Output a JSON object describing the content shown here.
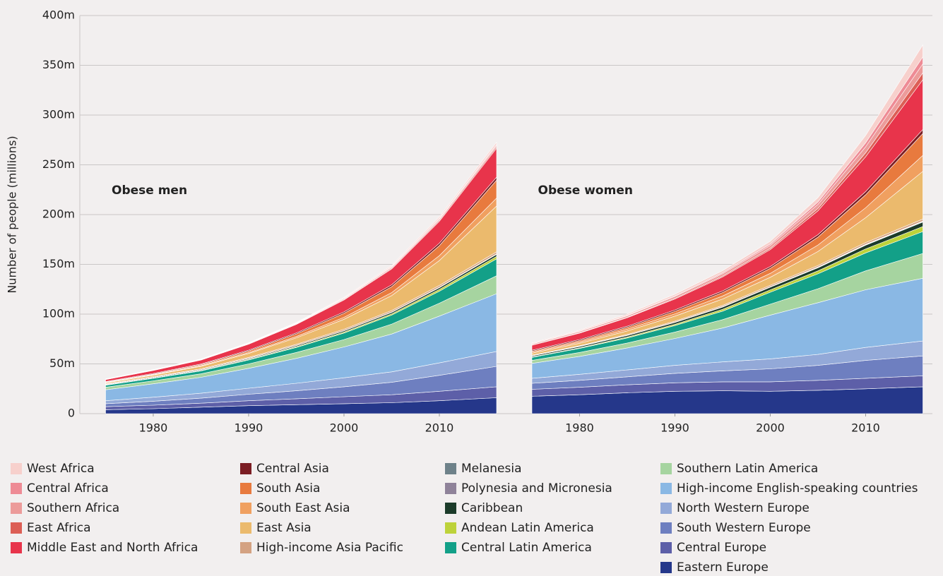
{
  "chart_data": [
    {
      "type": "stacked_area",
      "title": "Obese men",
      "ylabel": "Number of people (millions)",
      "x": [
        1975,
        1980,
        1985,
        1990,
        1995,
        2000,
        2005,
        2010,
        2016
      ],
      "xlim": [
        1972.3,
        2017
      ],
      "xticks": [
        1980,
        1990,
        2000,
        2010
      ],
      "ylim": [
        0,
        400
      ],
      "yticks": [
        0,
        {
          "value": 50,
          "label": "50m"
        },
        {
          "value": 100,
          "label": "100m"
        },
        {
          "value": 150,
          "label": "150m"
        },
        {
          "value": 200,
          "label": "200m"
        },
        {
          "value": 250,
          "label": "250m"
        },
        {
          "value": 300,
          "label": "300m"
        },
        {
          "value": 350,
          "label": "350m"
        },
        {
          "value": 400,
          "label": "400m"
        }
      ],
      "grid": true,
      "series": [
        {
          "name": "West Africa",
          "color": "#f7d0cc",
          "values": [
            0.2,
            0.25,
            0.3,
            0.4,
            0.6,
            0.8,
            1.1,
            1.5,
            2
          ]
        },
        {
          "name": "Central Africa",
          "color": "#ee8b95",
          "values": [
            0.1,
            0.15,
            0.2,
            0.3,
            0.4,
            0.5,
            0.6,
            0.8,
            1
          ]
        },
        {
          "name": "Southern Africa",
          "color": "#ec9b9a",
          "values": [
            0.3,
            0.35,
            0.4,
            0.5,
            0.6,
            0.8,
            1,
            1.2,
            1.5
          ]
        },
        {
          "name": "East Africa",
          "color": "#dc5e55",
          "values": [
            0.1,
            0.15,
            0.2,
            0.3,
            0.4,
            0.6,
            0.8,
            1.1,
            1.5
          ]
        },
        {
          "name": "Middle East and North Africa",
          "color": "#e8344b",
          "values": [
            2,
            3,
            4,
            6,
            8.5,
            12,
            16,
            22,
            29
          ]
        },
        {
          "name": "Central Asia",
          "color": "#7b1d23",
          "values": [
            0.5,
            0.6,
            0.7,
            0.9,
            1.1,
            1.4,
            1.8,
            2.4,
            3
          ]
        },
        {
          "name": "South Asia",
          "color": "#e87a3e",
          "values": [
            0.5,
            0.7,
            1,
            1.5,
            2.5,
            4,
            6,
            10,
            18
          ]
        },
        {
          "name": "South East Asia",
          "color": "#f0a060",
          "values": [
            0.3,
            0.4,
            0.6,
            0.9,
            1.4,
            2,
            3,
            5,
            8
          ]
        },
        {
          "name": "East Asia",
          "color": "#ebba6d",
          "values": [
            1,
            1.5,
            2.5,
            4,
            6.5,
            10,
            15,
            25,
            46
          ]
        },
        {
          "name": "High-income Asia Pacific",
          "color": "#d4a282",
          "values": [
            0.5,
            0.6,
            0.7,
            0.9,
            1.1,
            1.3,
            1.5,
            1.8,
            2
          ]
        },
        {
          "name": "Melanesia",
          "color": "#6e8189",
          "values": [
            0.05,
            0.06,
            0.08,
            0.1,
            0.12,
            0.15,
            0.2,
            0.25,
            0.3
          ]
        },
        {
          "name": "Polynesia and Micronesia",
          "color": "#8f8299",
          "values": [
            0.05,
            0.06,
            0.08,
            0.1,
            0.12,
            0.15,
            0.2,
            0.25,
            0.3
          ]
        },
        {
          "name": "Caribbean",
          "color": "#1c3b2a",
          "values": [
            0.5,
            0.6,
            0.7,
            0.8,
            1,
            1.2,
            1.4,
            1.7,
            2
          ]
        },
        {
          "name": "Andean Latin America",
          "color": "#bdd23a",
          "values": [
            0.3,
            0.4,
            0.5,
            0.6,
            0.8,
            1,
            1.3,
            1.8,
            2.5
          ]
        },
        {
          "name": "Central Latin America",
          "color": "#13a088",
          "values": [
            2,
            2.5,
            3,
            4,
            5,
            6.5,
            9,
            12,
            17
          ]
        },
        {
          "name": "Southern Latin America",
          "color": "#a6d4a0",
          "values": [
            2.5,
            3,
            3.5,
            4.5,
            6,
            7.5,
            10,
            13,
            18
          ]
        },
        {
          "name": "High-income English-speaking countries",
          "color": "#8ab8e4",
          "values": [
            11,
            13.5,
            16,
            20,
            25,
            31,
            38,
            47,
            58
          ]
        },
        {
          "name": "North Western Europe",
          "color": "#93a9d8",
          "values": [
            3,
            4,
            5,
            6,
            7.5,
            9,
            10.5,
            12.5,
            15
          ]
        },
        {
          "name": "South Western Europe",
          "color": "#6e7fc0",
          "values": [
            3,
            4,
            5,
            6.5,
            8,
            10,
            12.5,
            16,
            20.5
          ]
        },
        {
          "name": "Central Europe",
          "color": "#5d5fa8",
          "values": [
            3,
            3.5,
            4,
            5,
            6,
            7,
            8,
            9.5,
            11
          ]
        },
        {
          "name": "Eastern Europe",
          "color": "#25378a",
          "values": [
            4,
            5,
            6.5,
            8,
            9,
            10,
            11,
            13,
            16
          ]
        }
      ]
    },
    {
      "type": "stacked_area",
      "title": "Obese women",
      "x": [
        1975,
        1980,
        1985,
        1990,
        1995,
        2000,
        2005,
        2010,
        2016
      ],
      "xlim": [
        1972.3,
        2017
      ],
      "xticks": [
        1980,
        1990,
        2000,
        2010
      ],
      "series": [
        {
          "values": [
            0.7,
            0.9,
            1.2,
            1.6,
            2.1,
            2.8,
            4.5,
            7.5,
            12
          ]
        },
        {
          "values": [
            0.3,
            0.4,
            0.5,
            0.7,
            1,
            1.4,
            2.4,
            4,
            7
          ]
        },
        {
          "values": [
            1,
            1.2,
            1.5,
            1.8,
            2.2,
            2.8,
            4,
            6,
            9
          ]
        },
        {
          "values": [
            0.3,
            0.4,
            0.5,
            0.7,
            1,
            1.4,
            2.4,
            4,
            7
          ]
        },
        {
          "values": [
            5,
            6.5,
            8.5,
            11,
            14,
            17,
            24,
            35,
            50
          ]
        },
        {
          "values": [
            1,
            1.1,
            1.2,
            1.4,
            1.6,
            1.8,
            2.4,
            3.2,
            4
          ]
        },
        {
          "values": [
            1,
            1.3,
            1.8,
            2.5,
            3.5,
            5,
            8,
            13,
            22
          ]
        },
        {
          "values": [
            1,
            1.3,
            1.8,
            2.3,
            3,
            4,
            6.5,
            10,
            16
          ]
        },
        {
          "values": [
            2,
            2.5,
            3.5,
            5,
            6.5,
            8,
            14,
            25,
            48
          ]
        },
        {
          "values": [
            0.5,
            0.6,
            0.8,
            1,
            1.2,
            1.4,
            1.6,
            1.8,
            2
          ]
        },
        {
          "values": [
            0.1,
            0.12,
            0.15,
            0.2,
            0.25,
            0.3,
            0.35,
            0.4,
            0.5
          ]
        },
        {
          "values": [
            0.1,
            0.12,
            0.15,
            0.2,
            0.25,
            0.3,
            0.35,
            0.4,
            0.5
          ]
        },
        {
          "values": [
            1,
            1.2,
            1.5,
            1.8,
            2.2,
            2.6,
            3.1,
            3.8,
            4.5
          ]
        },
        {
          "values": [
            0.5,
            0.7,
            1,
            1.3,
            1.8,
            2.4,
            3,
            4,
            5
          ]
        },
        {
          "values": [
            3,
            4,
            5,
            6.5,
            8.5,
            12,
            15,
            18,
            22
          ]
        },
        {
          "values": [
            3,
            4,
            5,
            6.5,
            8.5,
            11,
            14,
            19,
            25
          ]
        },
        {
          "values": [
            15,
            18,
            22,
            27,
            34,
            44,
            52,
            58,
            63
          ]
        },
        {
          "values": [
            5,
            6,
            7,
            8,
            9,
            10,
            11,
            13,
            15
          ]
        },
        {
          "values": [
            6,
            7,
            8,
            9.5,
            11,
            13,
            15,
            18,
            20
          ]
        },
        {
          "values": [
            7,
            7.5,
            8,
            8.5,
            9,
            9.5,
            10,
            10.5,
            11
          ]
        },
        {
          "values": [
            17.5,
            19,
            21,
            22.5,
            23,
            22.5,
            23.5,
            25,
            27
          ]
        }
      ]
    }
  ]
}
